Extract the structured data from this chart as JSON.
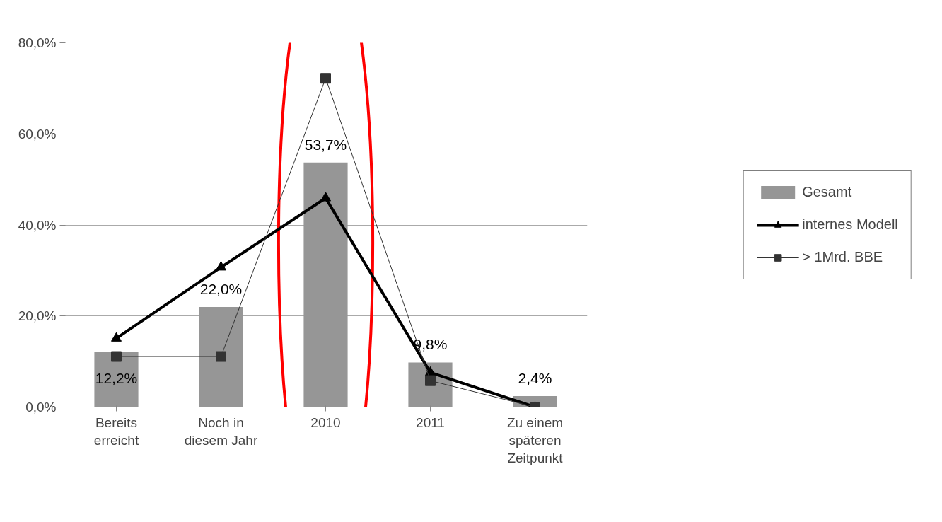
{
  "chart_data": {
    "type": "bar",
    "categories": [
      "Bereits\nerreicht",
      "Noch in\ndiesem Jahr",
      "2010",
      "2011",
      "Zu einem\nspäteren\nZeitpunkt"
    ],
    "series": [
      {
        "name": "Gesamt",
        "color": "#969696",
        "values": [
          12.2,
          22.0,
          53.7,
          9.8,
          2.4
        ],
        "value_labels": [
          "12,2%",
          "22,0%",
          "53,7%",
          "9,8%",
          "2,4%"
        ]
      },
      {
        "name": "internes Modell",
        "type": "line",
        "color": "#000000",
        "marker": "triangle",
        "values": [
          15.1,
          30.7,
          45.9,
          7.6,
          0.0
        ]
      },
      {
        "name": "> 1Mrd. BBE",
        "type": "line",
        "color": "#333333",
        "marker": "square",
        "values": [
          11.1,
          11.1,
          72.2,
          5.8,
          0.0
        ]
      }
    ],
    "ylim": [
      0,
      80
    ],
    "yticks": [
      {
        "value": 0,
        "label": "0,0%"
      },
      {
        "value": 20,
        "label": "20,0%"
      },
      {
        "value": 40,
        "label": "40,0%"
      },
      {
        "value": 60,
        "label": "60,0%"
      },
      {
        "value": 80,
        "label": "80,0%"
      }
    ],
    "grid": "y",
    "legend": "right"
  }
}
